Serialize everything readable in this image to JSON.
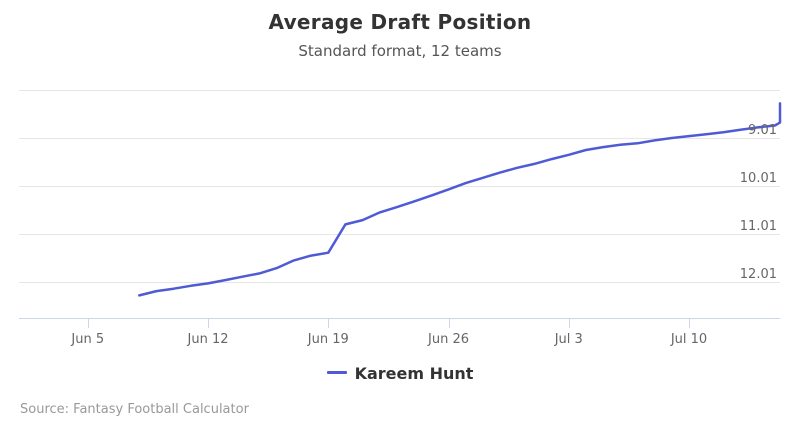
{
  "title": "Average Draft Position",
  "subtitle": "Standard format, 12 teams",
  "source": "Source: Fantasy Football Calculator",
  "colors": {
    "series": "#4f5bd5",
    "grid": "#e6e6e6",
    "axis": "#ccd6eb"
  },
  "chart_data": {
    "type": "line",
    "title": "Average Draft Position",
    "subtitle": "Standard format, 12 teams",
    "x_tick_labels": [
      "Jun 5",
      "Jun 12",
      "Jun 19",
      "Jun 26",
      "Jul 3",
      "Jul 10"
    ],
    "y_tick_labels": [
      "9.01",
      "10.01",
      "11.01",
      "12.01"
    ],
    "y_tick_values": [
      9.01,
      10.01,
      11.01,
      12.01
    ],
    "y_reversed": true,
    "ylim": [
      8.2,
      12.6
    ],
    "x_range_days": [
      -4,
      40.5
    ],
    "grid": true,
    "legend_position": "bottom-center",
    "series": [
      {
        "name": "Kareem Hunt",
        "x": [
          -4,
          -3,
          -2,
          -1,
          0,
          1,
          2,
          3,
          4,
          5,
          6,
          7,
          8,
          9,
          10,
          11,
          12,
          13,
          14,
          15,
          16,
          17,
          18,
          19,
          20,
          21,
          22,
          23,
          24,
          25,
          26,
          27,
          28,
          29,
          30,
          31,
          32,
          33,
          34,
          35,
          36,
          37,
          38,
          39,
          40,
          41,
          42,
          43,
          44
        ],
        "y": [
          12.29,
          12.2,
          12.15,
          12.09,
          12.04,
          11.97,
          11.9,
          11.83,
          11.72,
          11.56,
          11.46,
          11.4,
          10.81,
          10.72,
          10.56,
          10.45,
          10.33,
          10.21,
          10.08,
          9.95,
          9.84,
          9.73,
          9.63,
          9.55,
          9.45,
          9.36,
          9.26,
          9.2,
          9.15,
          9.12,
          9.06,
          9.01,
          8.97,
          8.93,
          8.89,
          8.84,
          8.79,
          8.75,
          8.69,
          8.63,
          8.58,
          8.52,
          8.46,
          8.41,
          8.37,
          8.33,
          8.3,
          8.29,
          8.29
        ]
      }
    ]
  }
}
